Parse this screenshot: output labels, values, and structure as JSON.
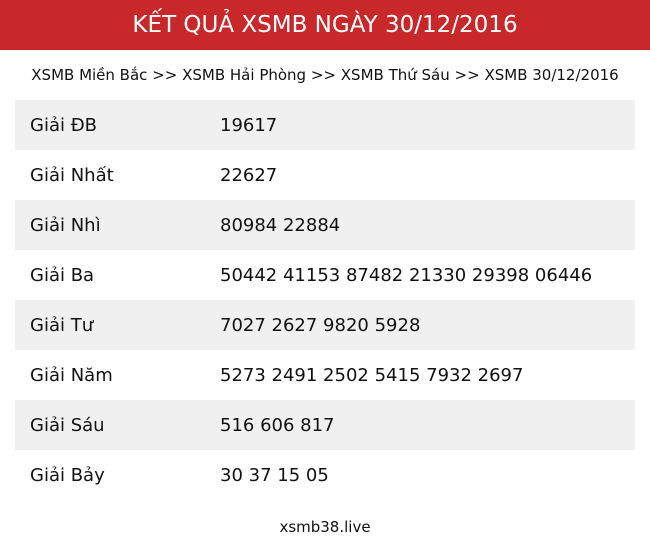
{
  "header": {
    "title": "KẾT QUẢ XSMB NGÀY 30/12/2016"
  },
  "breadcrumb": [
    {
      "label": "XSMB Miền Bắc"
    },
    {
      "label": "XSMB Hải Phòng"
    },
    {
      "label": "XSMB Thứ Sáu"
    },
    {
      "label": "XSMB 30/12/2016"
    }
  ],
  "breadcrumb_separator": ">>",
  "results": [
    {
      "prize": "Giải ĐB",
      "numbers": "19617"
    },
    {
      "prize": "Giải Nhất",
      "numbers": "22627"
    },
    {
      "prize": "Giải Nhì",
      "numbers": "80984 22884"
    },
    {
      "prize": "Giải Ba",
      "numbers": "50442 41153 87482 21330 29398 06446"
    },
    {
      "prize": "Giải Tư",
      "numbers": "7027 2627 9820 5928"
    },
    {
      "prize": "Giải Năm",
      "numbers": "5273 2491 2502 5415 7932 2697"
    },
    {
      "prize": "Giải Sáu",
      "numbers": "516 606 817"
    },
    {
      "prize": "Giải Bảy",
      "numbers": "30 37 15 05"
    }
  ],
  "footer": {
    "site": "xsmb38.live"
  },
  "colors": {
    "header_bg": "#c9282b",
    "row_alt": "#f0f0f0"
  }
}
